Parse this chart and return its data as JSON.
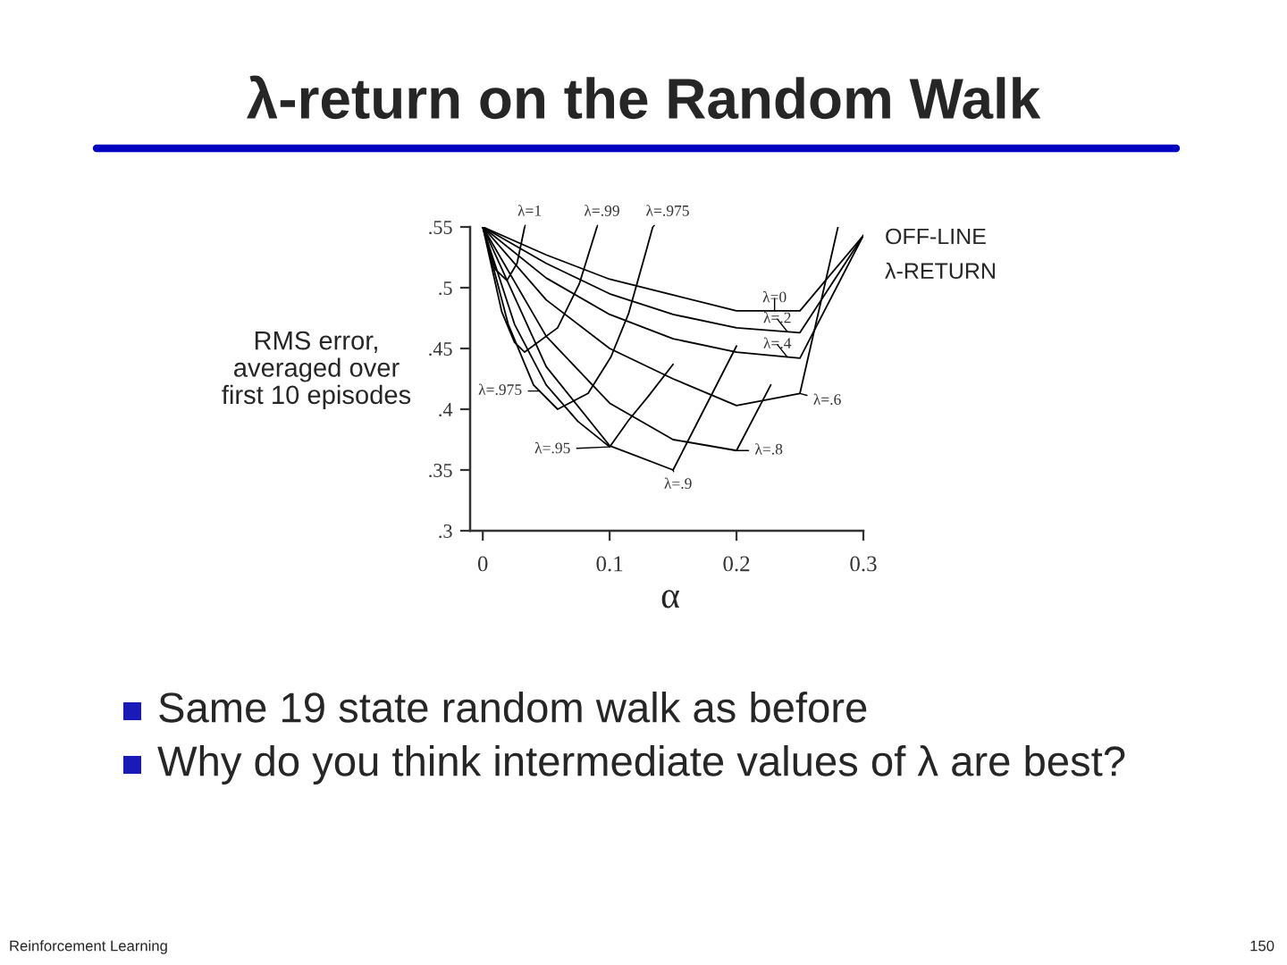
{
  "chart_data": {
    "type": "line",
    "title": "λ-return on the Random Walk",
    "xlabel": "α",
    "ylabel": "RMS error,\naveraged over\nfirst 10 episodes",
    "xlim": [
      -0.01,
      0.3
    ],
    "ylim": [
      0.3,
      0.55
    ],
    "xticks": [
      0,
      0.1,
      0.2,
      0.3
    ],
    "yticks": [
      {
        "value": 0.3,
        "label": ".3"
      },
      {
        "value": 0.35,
        "label": ".35"
      },
      {
        "value": 0.4,
        "label": ".4"
      },
      {
        "value": 0.45,
        "label": ".45"
      },
      {
        "value": 0.5,
        "label": ".5"
      },
      {
        "value": 0.55,
        "label": ".55"
      }
    ],
    "series": [
      {
        "color": "#000000",
        "x": [
          0,
          0.05,
          0.1,
          0.15,
          0.2,
          0.25,
          0.3
        ],
        "values": [
          0.55,
          0.527,
          0.507,
          0.494,
          0.481,
          0.481,
          0.543
        ]
      },
      {
        "color": "#000000",
        "x": [
          0,
          0.05,
          0.1,
          0.15,
          0.2,
          0.25,
          0.3
        ],
        "values": [
          0.55,
          0.52,
          0.495,
          0.478,
          0.467,
          0.463,
          0.543
        ]
      },
      {
        "color": "#000000",
        "x": [
          0,
          0.05,
          0.1,
          0.15,
          0.2,
          0.25,
          0.3
        ],
        "values": [
          0.55,
          0.508,
          0.478,
          0.458,
          0.447,
          0.442,
          0.543
        ]
      },
      {
        "color": "#000000",
        "x": [
          0,
          0.05,
          0.1,
          0.15,
          0.2,
          0.25,
          0.28
        ],
        "values": [
          0.55,
          0.49,
          0.45,
          0.425,
          0.403,
          0.413,
          0.55
        ]
      },
      {
        "color": "#000000",
        "x": [
          0,
          0.05,
          0.1,
          0.15,
          0.2,
          0.227
        ],
        "values": [
          0.55,
          0.46,
          0.405,
          0.375,
          0.366,
          0.42
        ]
      },
      {
        "color": "#000000",
        "x": [
          0,
          0.05,
          0.1,
          0.15,
          0.2
        ],
        "values": [
          0.55,
          0.435,
          0.37,
          0.35,
          0.452
        ]
      },
      {
        "color": "#000000",
        "x": [
          0,
          0.025,
          0.05,
          0.075,
          0.1,
          0.115,
          0.13,
          0.15
        ],
        "values": [
          0.55,
          0.47,
          0.42,
          0.39,
          0.369,
          0.391,
          0.41,
          0.437
        ]
      },
      {
        "color": "#000000",
        "x": [
          0,
          0.02,
          0.04,
          0.059,
          0.083,
          0.101,
          0.115,
          0.129,
          0.134
        ],
        "values": [
          0.55,
          0.47,
          0.42,
          0.4,
          0.413,
          0.443,
          0.479,
          0.531,
          0.55
        ]
      },
      {
        "color": "#000000",
        "x": [
          0,
          0.015,
          0.025,
          0.033,
          0.059,
          0.076,
          0.09
        ],
        "values": [
          0.55,
          0.48,
          0.455,
          0.447,
          0.467,
          0.503,
          0.55
        ]
      },
      {
        "color": "#000000",
        "x": [
          0,
          0.01,
          0.019,
          0.027,
          0.033
        ],
        "values": [
          0.55,
          0.515,
          0.506,
          0.52,
          0.55
        ]
      }
    ],
    "annotations": [
      "OFF-LINE\nλ-RETURN",
      "Same 19 state random walk as before",
      "Why do you think intermediate values of λ are best?",
      "Reinforcement Learning",
      "150",
      {
        "text": "λ=1",
        "x": 0.033,
        "y": 0.55
      },
      {
        "text": "λ=.99",
        "x": 0.09,
        "y": 0.55
      },
      {
        "text": "λ=.975",
        "x": 0.134,
        "y": 0.55
      },
      {
        "text": "λ=0",
        "x": 0.23,
        "y": 0.481
      },
      {
        "text": "λ=.2",
        "x": 0.24,
        "y": 0.464
      },
      {
        "text": "λ=.4",
        "x": 0.24,
        "y": 0.443
      },
      {
        "text": "λ=.6",
        "x": 0.25,
        "y": 0.413
      },
      {
        "text": "λ=.8",
        "x": 0.2,
        "y": 0.366
      },
      {
        "text": "λ=.9",
        "x": 0.15,
        "y": 0.35
      },
      {
        "text": "λ=.95",
        "x": 0.1,
        "y": 0.369
      },
      {
        "text": "λ=.975",
        "x": 0.045,
        "y": 0.415
      }
    ]
  }
}
